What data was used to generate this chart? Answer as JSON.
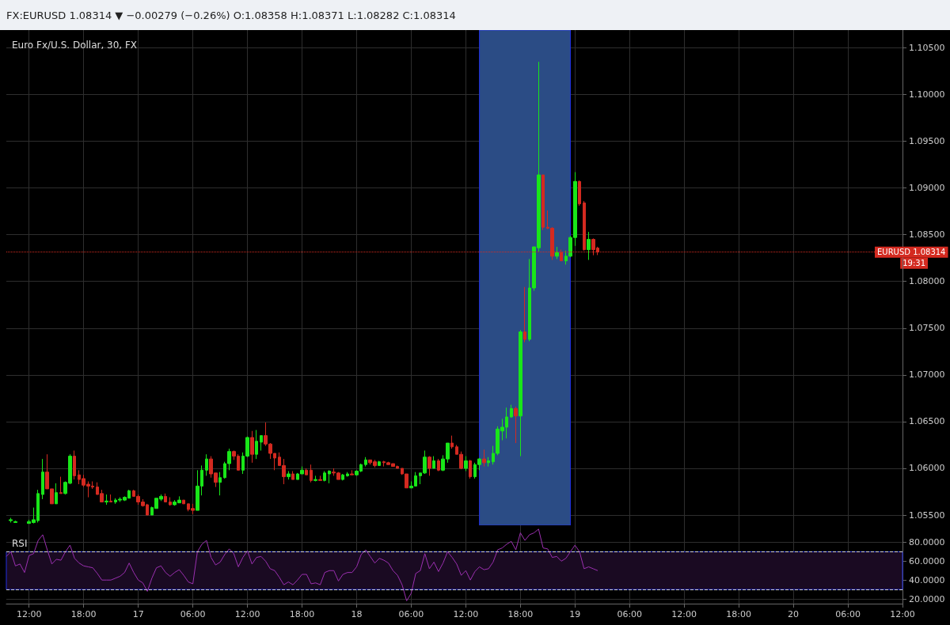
{
  "chart_data": [
    {
      "type": "candlestick",
      "title": "Euro Fx/U.S. Dollar, 30, FX",
      "annotations": [
        "FX:EURUSD 1.08314 ▼ −0.00279 (−0.26%) O:1.08358 H:1.08371 L:1.08282 C:1.08314",
        "19:31"
      ],
      "colors": [
        "#19e619",
        "#19e619",
        "#19e619",
        "#19e619",
        "#19e619",
        "#19e619",
        "#d42a20",
        "#d42a20",
        "#19e619",
        "#d42a20",
        "#19e619",
        "#19e619",
        "#d42a20",
        "#d42a20",
        "#d42a20",
        "#d42a20",
        "#d42a20",
        "#d42a20",
        "#d42a20",
        "#19e619",
        "#d42a20",
        "#19e619",
        "#19e619",
        "#19e619",
        "#19e619",
        "#d42a20",
        "#d42a20",
        "#d42a20",
        "#d42a20",
        "#19e619",
        "#19e619",
        "#19e619",
        "#d42a20",
        "#d42a20",
        "#19e619",
        "#19e619",
        "#d42a20",
        "#d42a20",
        "#d42a20",
        "#19e619",
        "#19e619",
        "#19e619",
        "#d42a20",
        "#d42a20",
        "#19e619",
        "#19e619",
        "#19e619",
        "#d42a20",
        "#d42a20",
        "#19e619",
        "#19e619",
        "#d42a20",
        "#19e619",
        "#19e619",
        "#d42a20",
        "#d42a20",
        "#d42a20",
        "#d42a20",
        "#d42a20",
        "#19e619",
        "#d42a20",
        "#19e619",
        "#19e619",
        "#d42a20",
        "#d42a20",
        "#19e619",
        "#d42a20",
        "#19e619",
        "#19e619",
        "#d42a20",
        "#d42a20",
        "#19e619",
        "#19e619",
        "#d42a20",
        "#19e619",
        "#19e619",
        "#19e619",
        "#d42a20",
        "#d42a20",
        "#19e619",
        "#d42a20",
        "#d42a20",
        "#d42a20",
        "#d42a20",
        "#d42a20",
        "#d42a20",
        "#19e619",
        "#19e619",
        "#19e619",
        "#19e619",
        "#d42a20",
        "#19e619",
        "#d42a20",
        "#19e619",
        "#19e619",
        "#d42a20",
        "#d42a20",
        "#d42a20",
        "#19e619",
        "#d42a20",
        "#19e619",
        "#19e619",
        "#d42a20",
        "#19e619",
        "#19e619",
        "#19e619",
        "#19e619",
        "#19e619",
        "#19e619",
        "#d42a20",
        "#19e619",
        "#d42a20",
        "#19e619",
        "#19e619",
        "#19e619",
        "#d42a20",
        "#d42a20",
        "#d42a20",
        "#19e619",
        "#d42a20",
        "#19e619",
        "#19e619",
        "#19e619",
        "#d42a20",
        "#d42a20",
        "#19e619",
        "#d42a20",
        "#d42a20"
      ],
      "x": [
        "--03-16T10:00",
        "--03-16T10:30",
        "--03-16T12:00",
        "--03-16T12:30",
        "--03-16T13:00",
        "--03-16T13:30",
        "--03-16T14:00",
        "--03-16T14:30",
        "--03-16T15:00",
        "--03-16T15:30",
        "--03-16T16:00",
        "--03-16T16:30",
        "--03-16T17:00",
        "--03-16T17:30",
        "--03-16T18:00",
        "--03-16T18:30",
        "--03-16T19:00",
        "--03-16T19:30",
        "--03-16T20:00",
        "--03-16T20:30",
        "--03-16T21:00",
        "--03-16T21:30",
        "--03-16T22:00",
        "--03-16T22:30",
        "--03-16T23:00",
        "--03-16T23:30",
        "--03-17T00:00",
        "--03-17T00:30",
        "--03-17T01:00",
        "--03-17T01:30",
        "--03-17T02:00",
        "--03-17T02:30",
        "--03-17T03:00",
        "--03-17T03:30",
        "--03-17T04:00",
        "--03-17T04:30",
        "--03-17T05:00",
        "--03-17T05:30",
        "--03-17T06:00",
        "--03-17T06:30",
        "--03-17T07:00",
        "--03-17T07:30",
        "--03-17T08:00",
        "--03-17T08:30",
        "--03-17T09:00",
        "--03-17T09:30",
        "--03-17T10:00",
        "--03-17T10:30",
        "--03-17T11:00",
        "--03-17T11:30",
        "--03-17T12:00",
        "--03-17T12:30",
        "--03-17T13:00",
        "--03-17T13:30",
        "--03-17T14:00",
        "--03-17T14:30",
        "--03-17T15:00",
        "--03-17T15:30",
        "--03-17T16:00",
        "--03-17T16:30",
        "--03-17T17:00",
        "--03-17T17:30",
        "--03-17T18:00",
        "--03-17T18:30",
        "--03-17T19:00",
        "--03-17T19:30",
        "--03-17T20:00",
        "--03-17T20:30",
        "--03-17T21:00",
        "--03-17T21:30",
        "--03-17T22:00",
        "--03-17T22:30",
        "--03-17T23:00",
        "--03-17T23:30",
        "--03-18T00:00",
        "--03-18T00:30",
        "--03-18T01:00",
        "--03-18T01:30",
        "--03-18T02:00",
        "--03-18T02:30",
        "--03-18T03:00",
        "--03-18T03:30",
        "--03-18T04:00",
        "--03-18T04:30",
        "--03-18T05:00",
        "--03-18T05:30",
        "--03-18T06:00",
        "--03-18T06:30",
        "--03-18T07:00",
        "--03-18T07:30",
        "--03-18T08:00",
        "--03-18T08:30",
        "--03-18T09:00",
        "--03-18T09:30",
        "--03-18T10:00",
        "--03-18T10:30",
        "--03-18T11:00",
        "--03-18T11:30",
        "--03-18T12:00",
        "--03-18T12:30",
        "--03-18T13:00",
        "--03-18T13:30",
        "--03-18T14:00",
        "--03-18T14:30",
        "--03-18T15:00",
        "--03-18T15:30",
        "--03-18T16:00",
        "--03-18T16:30",
        "--03-18T17:00",
        "--03-18T17:30",
        "--03-18T18:00",
        "--03-18T18:30",
        "--03-18T19:00",
        "--03-18T19:30",
        "--03-18T20:00",
        "--03-18T20:30",
        "--03-18T21:00",
        "--03-18T21:30",
        "--03-18T22:00",
        "--03-18T22:30",
        "--03-18T23:00",
        "--03-18T23:30",
        "--03-19T00:00",
        "--03-19T00:30",
        "--03-19T01:00",
        "--03-19T01:30",
        "--03-19T02:00",
        "--03-19T02:30"
      ],
      "ohlc": [
        [
          1.0544,
          1.0547,
          1.0542,
          1.0545
        ],
        [
          1.0542,
          1.0544,
          1.0542,
          1.0543
        ],
        [
          1.0541,
          1.0545,
          1.0541,
          1.0543
        ],
        [
          1.0542,
          1.0558,
          1.0541,
          1.0545
        ],
        [
          1.0544,
          1.0577,
          1.0542,
          1.0573
        ],
        [
          1.0572,
          1.061,
          1.0567,
          1.0596
        ],
        [
          1.0596,
          1.0615,
          1.0578,
          1.0578
        ],
        [
          1.0578,
          1.0578,
          1.0562,
          1.0562
        ],
        [
          1.0562,
          1.0584,
          1.0562,
          1.0574
        ],
        [
          1.0574,
          1.0591,
          1.0573,
          1.0573
        ],
        [
          1.0573,
          1.0586,
          1.0572,
          1.0585
        ],
        [
          1.0584,
          1.0615,
          1.0583,
          1.0613
        ],
        [
          1.0613,
          1.0619,
          1.0588,
          1.0592
        ],
        [
          1.0593,
          1.0598,
          1.0583,
          1.0588
        ],
        [
          1.0589,
          1.0593,
          1.058,
          1.0582
        ],
        [
          1.0583,
          1.0586,
          1.0569,
          1.0581
        ],
        [
          1.0581,
          1.0586,
          1.0578,
          1.058
        ],
        [
          1.058,
          1.0585,
          1.0572,
          1.0572
        ],
        [
          1.0573,
          1.0577,
          1.0564,
          1.0564
        ],
        [
          1.0564,
          1.0572,
          1.0561,
          1.0565
        ],
        [
          1.0565,
          1.0572,
          1.0564,
          1.0564
        ],
        [
          1.0564,
          1.0568,
          1.0562,
          1.0566
        ],
        [
          1.0566,
          1.0569,
          1.0564,
          1.0567
        ],
        [
          1.0566,
          1.057,
          1.0565,
          1.0569
        ],
        [
          1.0568,
          1.0577,
          1.0568,
          1.0576
        ],
        [
          1.0576,
          1.0577,
          1.057,
          1.057
        ],
        [
          1.057,
          1.0572,
          1.0561,
          1.0564
        ],
        [
          1.0564,
          1.0567,
          1.0559,
          1.056
        ],
        [
          1.0561,
          1.0562,
          1.055,
          1.055
        ],
        [
          1.055,
          1.0559,
          1.055,
          1.0558
        ],
        [
          1.0557,
          1.0568,
          1.0557,
          1.0568
        ],
        [
          1.0567,
          1.0572,
          1.0565,
          1.057
        ],
        [
          1.057,
          1.0573,
          1.0564,
          1.0564
        ],
        [
          1.0564,
          1.0569,
          1.056,
          1.0561
        ],
        [
          1.0561,
          1.0566,
          1.056,
          1.0564
        ],
        [
          1.0563,
          1.057,
          1.0563,
          1.0566
        ],
        [
          1.0566,
          1.0566,
          1.0562,
          1.0562
        ],
        [
          1.0562,
          1.0562,
          1.0554,
          1.0556
        ],
        [
          1.0557,
          1.0562,
          1.0551,
          1.0555
        ],
        [
          1.0555,
          1.0598,
          1.0555,
          1.0581
        ],
        [
          1.0581,
          1.0603,
          1.0571,
          1.0598
        ],
        [
          1.0598,
          1.0615,
          1.0592,
          1.061
        ],
        [
          1.061,
          1.0613,
          1.059,
          1.0594
        ],
        [
          1.0595,
          1.0595,
          1.058,
          1.0585
        ],
        [
          1.0585,
          1.0596,
          1.0571,
          1.059
        ],
        [
          1.059,
          1.0607,
          1.0589,
          1.0605
        ],
        [
          1.0605,
          1.0621,
          1.0598,
          1.0618
        ],
        [
          1.0618,
          1.0619,
          1.0609,
          1.0613
        ],
        [
          1.0613,
          1.0615,
          1.0598,
          1.0598
        ],
        [
          1.0598,
          1.0617,
          1.0594,
          1.0613
        ],
        [
          1.0613,
          1.0634,
          1.0612,
          1.0633
        ],
        [
          1.0633,
          1.064,
          1.0606,
          1.0615
        ],
        [
          1.0615,
          1.0641,
          1.061,
          1.0629
        ],
        [
          1.0628,
          1.0635,
          1.0619,
          1.0635
        ],
        [
          1.0635,
          1.0649,
          1.0624,
          1.0626
        ],
        [
          1.0626,
          1.0627,
          1.061,
          1.0616
        ],
        [
          1.0616,
          1.0616,
          1.0598,
          1.0611
        ],
        [
          1.0612,
          1.0617,
          1.0603,
          1.0603
        ],
        [
          1.0603,
          1.061,
          1.0583,
          1.0591
        ],
        [
          1.0591,
          1.0597,
          1.0588,
          1.0594
        ],
        [
          1.0594,
          1.0597,
          1.0588,
          1.0588
        ],
        [
          1.0588,
          1.0595,
          1.0588,
          1.0594
        ],
        [
          1.0594,
          1.0602,
          1.0594,
          1.0598
        ],
        [
          1.0598,
          1.06,
          1.0593,
          1.0593
        ],
        [
          1.0598,
          1.0604,
          1.0585,
          1.0587
        ],
        [
          1.0587,
          1.0592,
          1.0586,
          1.0588
        ],
        [
          1.0588,
          1.0592,
          1.0587,
          1.0587
        ],
        [
          1.0587,
          1.0597,
          1.0586,
          1.0595
        ],
        [
          1.0594,
          1.0598,
          1.0584,
          1.0597
        ],
        [
          1.0596,
          1.06,
          1.0592,
          1.0595
        ],
        [
          1.0595,
          1.0596,
          1.0588,
          1.0588
        ],
        [
          1.0588,
          1.0594,
          1.0587,
          1.0593
        ],
        [
          1.0592,
          1.0596,
          1.0591,
          1.0594
        ],
        [
          1.0594,
          1.0598,
          1.0593,
          1.0593
        ],
        [
          1.0593,
          1.0598,
          1.0592,
          1.0597
        ],
        [
          1.0597,
          1.0605,
          1.0596,
          1.0604
        ],
        [
          1.0604,
          1.0612,
          1.0602,
          1.0609
        ],
        [
          1.0609,
          1.0609,
          1.0604,
          1.0606
        ],
        [
          1.0607,
          1.0609,
          1.0601,
          1.0603
        ],
        [
          1.0603,
          1.0608,
          1.0603,
          1.0607
        ],
        [
          1.0607,
          1.0608,
          1.0602,
          1.0606
        ],
        [
          1.0606,
          1.0607,
          1.0604,
          1.0604
        ],
        [
          1.0605,
          1.0605,
          1.0602,
          1.0602
        ],
        [
          1.0602,
          1.0603,
          1.06,
          1.06
        ],
        [
          1.06,
          1.06,
          1.0593,
          1.0594
        ],
        [
          1.0594,
          1.0594,
          1.0579,
          1.0579
        ],
        [
          1.0579,
          1.0586,
          1.0579,
          1.0581
        ],
        [
          1.0581,
          1.0596,
          1.0581,
          1.0592
        ],
        [
          1.0592,
          1.0595,
          1.0583,
          1.0595
        ],
        [
          1.0595,
          1.0619,
          1.0594,
          1.0612
        ],
        [
          1.0612,
          1.0613,
          1.0592,
          1.06
        ],
        [
          1.06,
          1.0613,
          1.06,
          1.0608
        ],
        [
          1.0608,
          1.061,
          1.0597,
          1.0598
        ],
        [
          1.0598,
          1.0614,
          1.0597,
          1.061
        ],
        [
          1.061,
          1.0627,
          1.0606,
          1.0627
        ],
        [
          1.0627,
          1.0635,
          1.0621,
          1.0623
        ],
        [
          1.0623,
          1.0625,
          1.0615,
          1.0615
        ],
        [
          1.0615,
          1.0618,
          1.0599,
          1.06
        ],
        [
          1.06,
          1.0613,
          1.0597,
          1.0608
        ],
        [
          1.0608,
          1.0609,
          1.0589,
          1.0591
        ],
        [
          1.0591,
          1.0606,
          1.0589,
          1.0604
        ],
        [
          1.0604,
          1.0611,
          1.0598,
          1.061
        ],
        [
          1.061,
          1.062,
          1.0602,
          1.0606
        ],
        [
          1.0606,
          1.0612,
          1.0602,
          1.0608
        ],
        [
          1.0607,
          1.0624,
          1.0604,
          1.0616
        ],
        [
          1.0616,
          1.0645,
          1.0614,
          1.0642
        ],
        [
          1.064,
          1.0653,
          1.063,
          1.0644
        ],
        [
          1.0644,
          1.0665,
          1.0632,
          1.0655
        ],
        [
          1.0655,
          1.0668,
          1.0654,
          1.0664
        ],
        [
          1.0664,
          1.0666,
          1.0627,
          1.0656
        ],
        [
          1.0656,
          1.0748,
          1.0613,
          1.0746
        ],
        [
          1.0746,
          1.0794,
          1.0735,
          1.0738
        ],
        [
          1.0738,
          1.0824,
          1.0736,
          1.0793
        ],
        [
          1.0793,
          1.0837,
          1.079,
          1.0837
        ],
        [
          1.0836,
          1.1035,
          1.0832,
          1.0914
        ],
        [
          1.0914,
          1.0914,
          1.0855,
          1.0858
        ],
        [
          1.0858,
          1.0876,
          1.0856,
          1.0857
        ],
        [
          1.0857,
          1.0858,
          1.0823,
          1.0827
        ],
        [
          1.0827,
          1.0837,
          1.0824,
          1.0831
        ],
        [
          1.0831,
          1.0834,
          1.0822,
          1.0822
        ],
        [
          1.0822,
          1.0833,
          1.0818,
          1.0827
        ],
        [
          1.0827,
          1.0849,
          1.0826,
          1.0847
        ],
        [
          1.0847,
          1.0917,
          1.0838,
          1.0907
        ],
        [
          1.0907,
          1.0908,
          1.0881,
          1.0883
        ],
        [
          1.0884,
          1.0886,
          1.0833,
          1.0834
        ],
        [
          1.0834,
          1.0853,
          1.0823,
          1.0845
        ],
        [
          1.0845,
          1.0846,
          1.0828,
          1.0834
        ],
        [
          1.08358,
          1.08371,
          1.08282,
          1.08314
        ]
      ],
      "xlim": [
        "--03-16T09:30",
        "--03-20T12:00"
      ],
      "xticks": [
        {
          "value": "--03-16T12:00",
          "label": null
        },
        {
          "value": "--03-16T18:00",
          "label": null
        },
        {
          "value": "--03-17T00:00",
          "label": null
        },
        {
          "value": "--03-17T06:00",
          "label": null
        },
        {
          "value": "--03-17T12:00",
          "label": null
        },
        {
          "value": "--03-17T18:00",
          "label": null
        },
        {
          "value": "--03-18T00:00",
          "label": null
        },
        {
          "value": "--03-18T06:00",
          "label": null
        },
        {
          "value": "--03-18T12:00",
          "label": null
        },
        {
          "value": "--03-18T18:00",
          "label": null
        },
        {
          "value": "--03-19T00:00",
          "label": null
        },
        {
          "value": "--03-19T06:00",
          "label": null
        },
        {
          "value": "--03-19T12:00",
          "label": null
        },
        {
          "value": "--03-19T18:00",
          "label": null
        },
        {
          "value": "--03-20T00:00",
          "label": null
        },
        {
          "value": "--03-20T06:00",
          "label": null
        },
        {
          "value": "--03-20T12:00",
          "label": null
        }
      ],
      "ylim": [
        1.0539,
        1.1069
      ],
      "yticks": [
        {
          "value": 1.055,
          "label": "1.05500"
        },
        {
          "value": 1.06,
          "label": "1.06000"
        },
        {
          "value": 1.065,
          "label": "1.06500"
        },
        {
          "value": 1.07,
          "label": "1.07000"
        },
        {
          "value": 1.075,
          "label": "1.07500"
        },
        {
          "value": 1.08,
          "label": "1.08000"
        },
        {
          "value": 1.085,
          "label": "1.08500"
        },
        {
          "value": 1.09,
          "label": "1.09000"
        },
        {
          "value": 1.095,
          "label": "1.09500"
        },
        {
          "value": 1.1,
          "label": "1.10000"
        },
        {
          "value": 1.105,
          "label": "1.10500"
        }
      ],
      "grid": true,
      "tick_labels": "y",
      "ref_lines": [
        {
          "axis": "y",
          "value": 1.08314,
          "label": "EURUSD 1.08314",
          "color": "#d42a20",
          "line_style": "dotted"
        }
      ],
      "bands": [
        {
          "axis": "x",
          "from": "--03-18T13:30",
          "to": "--03-18T23:30",
          "color": "#2b4c85"
        }
      ]
    },
    {
      "type": "line",
      "title": "RSI",
      "marker": "none",
      "series": [
        {
          "color": "#9b30b0",
          "values": [
            65,
            70,
            55,
            57,
            48,
            66,
            68,
            82,
            88,
            72,
            57,
            62,
            61,
            70,
            77,
            63,
            58,
            55,
            54,
            53,
            47,
            40,
            40,
            40,
            42,
            44,
            48,
            58,
            48,
            40,
            37,
            28,
            42,
            53,
            55,
            48,
            44,
            48,
            51,
            45,
            38,
            36,
            70,
            78,
            82,
            64,
            56,
            59,
            67,
            73,
            68,
            54,
            64,
            71,
            57,
            64,
            65,
            60,
            52,
            50,
            43,
            35,
            38,
            35,
            40,
            46,
            46,
            36,
            37,
            35,
            48,
            50,
            50,
            39,
            46,
            48,
            48,
            54,
            67,
            72,
            65,
            58,
            63,
            61,
            58,
            50,
            45,
            35,
            18,
            26,
            47,
            50,
            68,
            52,
            59,
            49,
            58,
            70,
            64,
            57,
            45,
            50,
            40,
            49,
            54,
            51,
            52,
            59,
            72,
            74,
            78,
            81,
            72,
            90,
            82,
            88,
            90,
            94,
            74,
            73,
            64,
            65,
            60,
            63,
            70,
            77,
            70,
            52,
            54,
            52,
            50
          ]
        }
      ],
      "x": [
        "--03-16T09:30",
        "--03-16T10:00",
        "--03-16T10:30",
        "--03-16T11:00",
        "--03-16T11:30",
        "--03-16T12:00",
        "--03-16T12:30",
        "--03-16T13:00",
        "--03-16T13:30",
        "--03-16T14:00",
        "--03-16T14:30",
        "--03-16T15:00",
        "--03-16T15:30",
        "--03-16T16:00",
        "--03-16T16:30",
        "--03-16T17:00",
        "--03-16T17:30",
        "--03-16T18:00",
        "--03-16T18:30",
        "--03-16T19:00",
        "--03-16T19:30",
        "--03-16T20:00",
        "--03-16T20:30",
        "--03-16T21:00",
        "--03-16T21:30",
        "--03-16T22:00",
        "--03-16T22:30",
        "--03-16T23:00",
        "--03-16T23:30",
        "--03-17T00:00",
        "--03-17T00:30",
        "--03-17T01:00",
        "--03-17T01:30",
        "--03-17T02:00",
        "--03-17T02:30",
        "--03-17T03:00",
        "--03-17T03:30",
        "--03-17T04:00",
        "--03-17T04:30",
        "--03-17T05:00",
        "--03-17T05:30",
        "--03-17T06:00",
        "--03-17T06:30",
        "--03-17T07:00",
        "--03-17T07:30",
        "--03-17T08:00",
        "--03-17T08:30",
        "--03-17T09:00",
        "--03-17T09:30",
        "--03-17T10:00",
        "--03-17T10:30",
        "--03-17T11:00",
        "--03-17T11:30",
        "--03-17T12:00",
        "--03-17T12:30",
        "--03-17T13:00",
        "--03-17T13:30",
        "--03-17T14:00",
        "--03-17T14:30",
        "--03-17T15:00",
        "--03-17T15:30",
        "--03-17T16:00",
        "--03-17T16:30",
        "--03-17T17:00",
        "--03-17T17:30",
        "--03-17T18:00",
        "--03-17T18:30",
        "--03-17T19:00",
        "--03-17T19:30",
        "--03-17T20:00",
        "--03-17T20:30",
        "--03-17T21:00",
        "--03-17T21:30",
        "--03-17T22:00",
        "--03-17T22:30",
        "--03-17T23:00",
        "--03-17T23:30",
        "--03-18T00:00",
        "--03-18T00:30",
        "--03-18T01:00",
        "--03-18T01:30",
        "--03-18T02:00",
        "--03-18T02:30",
        "--03-18T03:00",
        "--03-18T03:30",
        "--03-18T04:00",
        "--03-18T04:30",
        "--03-18T05:00",
        "--03-18T05:30",
        "--03-18T06:00",
        "--03-18T06:30",
        "--03-18T07:00",
        "--03-18T07:30",
        "--03-18T08:00",
        "--03-18T08:30",
        "--03-18T09:00",
        "--03-18T09:30",
        "--03-18T10:00",
        "--03-18T10:30",
        "--03-18T11:00",
        "--03-18T11:30",
        "--03-18T12:00",
        "--03-18T12:30",
        "--03-18T13:00",
        "--03-18T13:30",
        "--03-18T14:00",
        "--03-18T14:30",
        "--03-18T15:00",
        "--03-18T15:30",
        "--03-18T16:00",
        "--03-18T16:30",
        "--03-18T17:00",
        "--03-18T17:30",
        "--03-18T18:00",
        "--03-18T18:30",
        "--03-18T19:00",
        "--03-18T19:30",
        "--03-18T20:00",
        "--03-18T20:30",
        "--03-18T21:00",
        "--03-18T21:30",
        "--03-18T22:00",
        "--03-18T22:30",
        "--03-18T23:00",
        "--03-18T23:30",
        "--03-19T00:00",
        "--03-19T00:30",
        "--03-19T01:00",
        "--03-19T01:30",
        "--03-19T02:00",
        "--03-19T02:30"
      ],
      "xlim": [
        "--03-16T09:30",
        "--03-20T12:00"
      ],
      "xticks": [
        {
          "value": "--03-16T12:00",
          "label": "12:00"
        },
        {
          "value": "--03-16T18:00",
          "label": "18:00"
        },
        {
          "value": "--03-17T00:00",
          "label": "17"
        },
        {
          "value": "--03-17T06:00",
          "label": "06:00"
        },
        {
          "value": "--03-17T12:00",
          "label": "12:00"
        },
        {
          "value": "--03-17T18:00",
          "label": "18:00"
        },
        {
          "value": "--03-18T00:00",
          "label": "18"
        },
        {
          "value": "--03-18T06:00",
          "label": "06:00"
        },
        {
          "value": "--03-18T12:00",
          "label": "12:00"
        },
        {
          "value": "--03-18T18:00",
          "label": "18:00"
        },
        {
          "value": "--03-19T00:00",
          "label": "19"
        },
        {
          "value": "--03-19T06:00",
          "label": "06:00"
        },
        {
          "value": "--03-19T12:00",
          "label": "12:00"
        },
        {
          "value": "--03-19T18:00",
          "label": "18:00"
        },
        {
          "value": "--03-20T00:00",
          "label": "20"
        },
        {
          "value": "--03-20T06:00",
          "label": "06:00"
        },
        {
          "value": "--03-20T12:00",
          "label": "12:00"
        }
      ],
      "ylim": [
        15,
        98
      ],
      "yticks": [
        {
          "value": 20,
          "label": "20.0000"
        },
        {
          "value": 40,
          "label": "40.0000"
        },
        {
          "value": 60,
          "label": "60.0000"
        },
        {
          "value": 80,
          "label": "80.0000"
        }
      ],
      "grid": true,
      "ref_lines": [
        {
          "axis": "y",
          "value": 70,
          "color": "#d0d0d0",
          "line_style": "dashed"
        },
        {
          "axis": "y",
          "value": 30,
          "color": "#d0d0d0",
          "line_style": "dashed"
        }
      ],
      "bands": [
        {
          "axis": "y",
          "from": 30,
          "to": 70,
          "color": "#1a0a22"
        }
      ]
    }
  ]
}
